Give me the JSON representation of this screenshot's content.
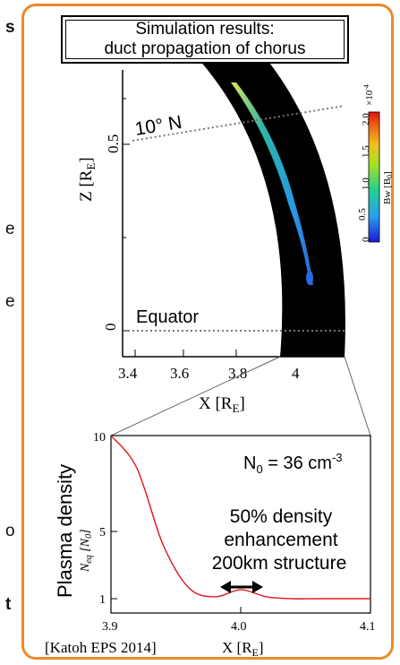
{
  "left_fragments": [
    "s",
    "e",
    "e",
    "o",
    "t"
  ],
  "title": {
    "line1": "Simulation results:",
    "line2": "duct propagation of chorus"
  },
  "top_plot": {
    "latitude_label": "10° N",
    "equator_label": "Equator",
    "x_label_main": "X [R",
    "x_label_sub": "E",
    "x_label_end": "]",
    "y_label_main": "Z [R",
    "y_label_sub": "E",
    "y_label_end": "]",
    "x_ticks": [
      "3.4",
      "3.6",
      "3.8",
      "4"
    ],
    "y_ticks": [
      "0",
      "0.5"
    ],
    "colorbar_ticks": [
      "0",
      "0.5",
      "1.0",
      "1.5",
      "2.0"
    ],
    "colorbar_exponent": "×10",
    "colorbar_exponent_power": "-4",
    "colorbar_label": "Bw [B",
    "colorbar_label_sub": "0",
    "colorbar_label_end": "]",
    "colorbar_colors": [
      "#1a1ad0",
      "#2aa0f0",
      "#22d090",
      "#a8e020",
      "#f0c020",
      "#f06010",
      "#e01010"
    ]
  },
  "bottom_plot": {
    "n0_label": "N",
    "n0_sub": "0",
    "n0_value": " = 36 cm",
    "n0_exp": "-3",
    "annotation": [
      "50% density",
      "enhancement",
      "200km structure"
    ],
    "y_label": "Plasma density",
    "y_sublabel_main": "N",
    "y_sublabel_sub": "eq",
    "y_sublabel_end": " [N",
    "y_sublabel_sub2": "0",
    "y_sublabel_close": "]",
    "x_ticks": [
      "3.9",
      "4.0",
      "4.1"
    ],
    "y_ticks": [
      "10",
      "5",
      "1"
    ],
    "x_label_main": "X [R",
    "x_label_sub": "E",
    "x_label_end": "]",
    "citation": "[Katoh EPS 2014]",
    "curve_color": "#e0161b"
  },
  "chart_data": {
    "type": "line",
    "x": [
      3.9,
      3.92,
      3.94,
      3.96,
      3.98,
      4.0,
      4.02,
      4.04,
      4.06,
      4.08,
      4.1
    ],
    "series": [
      {
        "values": [
          10,
          8.2,
          4.0,
          1.6,
          1.1,
          1.5,
          1.1,
          1.0,
          1.0,
          1.0,
          1.0
        ]
      }
    ],
    "xlim": [
      3.9,
      4.1
    ],
    "ylim": [
      0,
      10
    ]
  }
}
